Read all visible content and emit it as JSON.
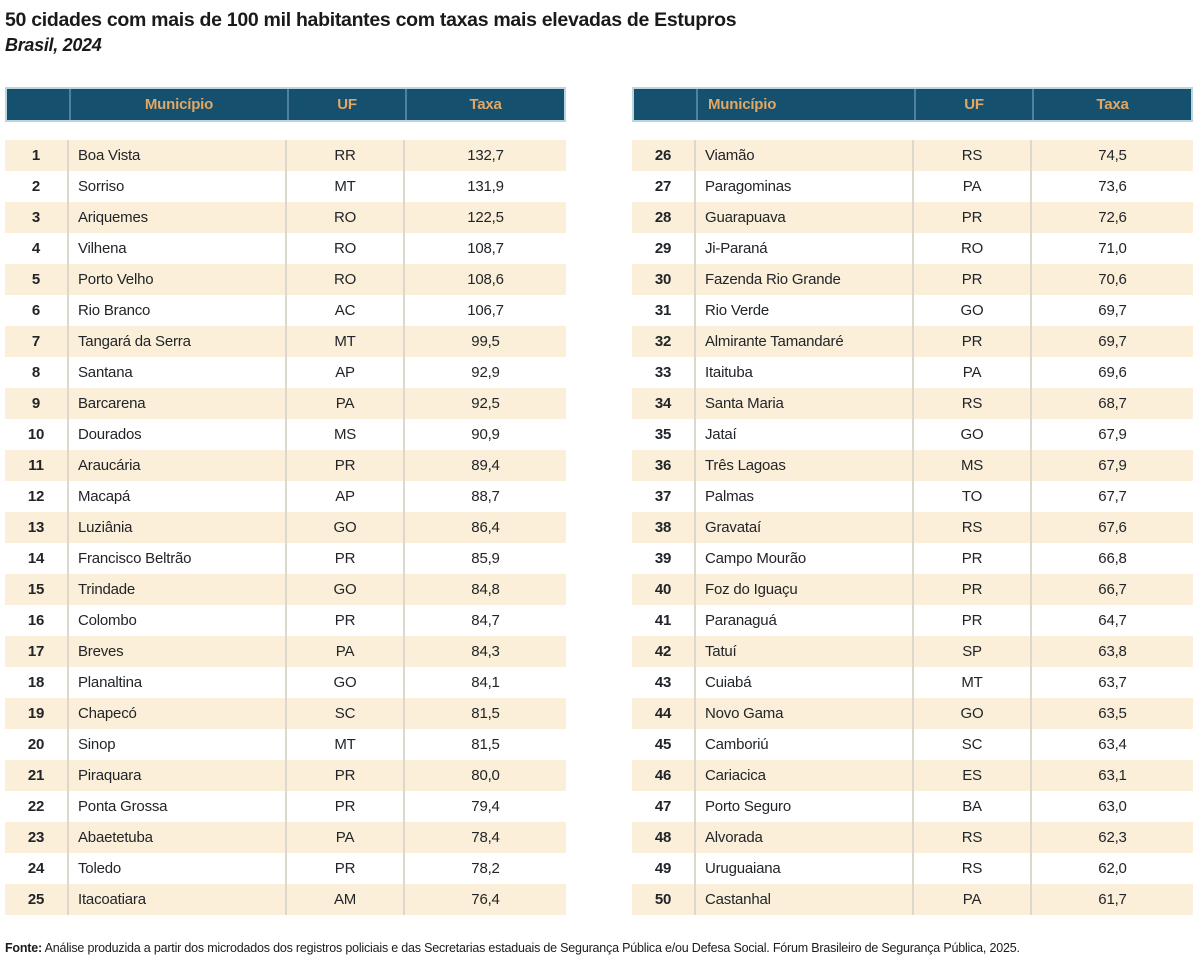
{
  "title": "50 cidades com mais de 100 mil habitantes com taxas mais elevadas de Estupros",
  "subtitle": "Brasil, 2024",
  "columns": {
    "rank": "",
    "municipio": "Município",
    "uf": "UF",
    "taxa": "Taxa"
  },
  "source": {
    "label": "Fonte:",
    "text": " Análise produzida a partir dos microdados dos registros policiais e das Secretarias estaduais de Segurança Pública e/ou Defesa Social. Fórum Brasileiro de Segurança Pública, 2025."
  },
  "colors": {
    "header_bg": "#15506e",
    "header_text": "#e0a765",
    "header_border": "#bcd4e0",
    "header_divider": "#4e81a0",
    "row_alt_bg": "#fcefd9",
    "row_divider": "#dcd8cb",
    "text_color": "#212529"
  },
  "tables": [
    {
      "id": "left",
      "rows": [
        {
          "rank": "1",
          "municipio": "Boa Vista",
          "uf": "RR",
          "taxa": "132,7"
        },
        {
          "rank": "2",
          "municipio": "Sorriso",
          "uf": "MT",
          "taxa": "131,9"
        },
        {
          "rank": "3",
          "municipio": "Ariquemes",
          "uf": "RO",
          "taxa": "122,5"
        },
        {
          "rank": "4",
          "municipio": "Vilhena",
          "uf": "RO",
          "taxa": "108,7"
        },
        {
          "rank": "5",
          "municipio": "Porto Velho",
          "uf": "RO",
          "taxa": "108,6"
        },
        {
          "rank": "6",
          "municipio": "Rio Branco",
          "uf": "AC",
          "taxa": "106,7"
        },
        {
          "rank": "7",
          "municipio": "Tangará da Serra",
          "uf": "MT",
          "taxa": "99,5"
        },
        {
          "rank": "8",
          "municipio": "Santana",
          "uf": "AP",
          "taxa": "92,9"
        },
        {
          "rank": "9",
          "municipio": "Barcarena",
          "uf": "PA",
          "taxa": "92,5"
        },
        {
          "rank": "10",
          "municipio": "Dourados",
          "uf": "MS",
          "taxa": "90,9"
        },
        {
          "rank": "11",
          "municipio": "Araucária",
          "uf": "PR",
          "taxa": "89,4"
        },
        {
          "rank": "12",
          "municipio": "Macapá",
          "uf": "AP",
          "taxa": "88,7"
        },
        {
          "rank": "13",
          "municipio": "Luziânia",
          "uf": "GO",
          "taxa": "86,4"
        },
        {
          "rank": "14",
          "municipio": "Francisco Beltrão",
          "uf": "PR",
          "taxa": "85,9"
        },
        {
          "rank": "15",
          "municipio": "Trindade",
          "uf": "GO",
          "taxa": "84,8"
        },
        {
          "rank": "16",
          "municipio": "Colombo",
          "uf": "PR",
          "taxa": "84,7"
        },
        {
          "rank": "17",
          "municipio": "Breves",
          "uf": "PA",
          "taxa": "84,3"
        },
        {
          "rank": "18",
          "municipio": "Planaltina",
          "uf": "GO",
          "taxa": "84,1"
        },
        {
          "rank": "19",
          "municipio": "Chapecó",
          "uf": "SC",
          "taxa": "81,5"
        },
        {
          "rank": "20",
          "municipio": "Sinop",
          "uf": "MT",
          "taxa": "81,5"
        },
        {
          "rank": "21",
          "municipio": "Piraquara",
          "uf": "PR",
          "taxa": "80,0"
        },
        {
          "rank": "22",
          "municipio": "Ponta Grossa",
          "uf": "PR",
          "taxa": "79,4"
        },
        {
          "rank": "23",
          "municipio": "Abaetetuba",
          "uf": "PA",
          "taxa": "78,4"
        },
        {
          "rank": "24",
          "municipio": "Toledo",
          "uf": "PR",
          "taxa": "78,2"
        },
        {
          "rank": "25",
          "municipio": "Itacoatiara",
          "uf": "AM",
          "taxa": "76,4"
        }
      ]
    },
    {
      "id": "right",
      "rows": [
        {
          "rank": "26",
          "municipio": "Viamão",
          "uf": "RS",
          "taxa": "74,5"
        },
        {
          "rank": "27",
          "municipio": "Paragominas",
          "uf": "PA",
          "taxa": "73,6"
        },
        {
          "rank": "28",
          "municipio": "Guarapuava",
          "uf": "PR",
          "taxa": "72,6"
        },
        {
          "rank": "29",
          "municipio": "Ji-Paraná",
          "uf": "RO",
          "taxa": "71,0"
        },
        {
          "rank": "30",
          "municipio": "Fazenda Rio Grande",
          "uf": "PR",
          "taxa": "70,6"
        },
        {
          "rank": "31",
          "municipio": "Rio Verde",
          "uf": "GO",
          "taxa": "69,7"
        },
        {
          "rank": "32",
          "municipio": "Almirante Tamandaré",
          "uf": "PR",
          "taxa": "69,7"
        },
        {
          "rank": "33",
          "municipio": "Itaituba",
          "uf": "PA",
          "taxa": "69,6"
        },
        {
          "rank": "34",
          "municipio": "Santa Maria",
          "uf": "RS",
          "taxa": "68,7"
        },
        {
          "rank": "35",
          "municipio": "Jataí",
          "uf": "GO",
          "taxa": "67,9"
        },
        {
          "rank": "36",
          "municipio": "Três Lagoas",
          "uf": "MS",
          "taxa": "67,9"
        },
        {
          "rank": "37",
          "municipio": "Palmas",
          "uf": "TO",
          "taxa": "67,7"
        },
        {
          "rank": "38",
          "municipio": "Gravataí",
          "uf": "RS",
          "taxa": "67,6"
        },
        {
          "rank": "39",
          "municipio": "Campo Mourão",
          "uf": "PR",
          "taxa": "66,8"
        },
        {
          "rank": "40",
          "municipio": "Foz do Iguaçu",
          "uf": "PR",
          "taxa": "66,7"
        },
        {
          "rank": "41",
          "municipio": "Paranaguá",
          "uf": "PR",
          "taxa": "64,7"
        },
        {
          "rank": "42",
          "municipio": "Tatuí",
          "uf": "SP",
          "taxa": "63,8"
        },
        {
          "rank": "43",
          "municipio": "Cuiabá",
          "uf": "MT",
          "taxa": "63,7"
        },
        {
          "rank": "44",
          "municipio": "Novo Gama",
          "uf": "GO",
          "taxa": "63,5"
        },
        {
          "rank": "45",
          "municipio": "Camboriú",
          "uf": "SC",
          "taxa": "63,4"
        },
        {
          "rank": "46",
          "municipio": "Cariacica",
          "uf": "ES",
          "taxa": "63,1"
        },
        {
          "rank": "47",
          "municipio": "Porto Seguro",
          "uf": "BA",
          "taxa": "63,0"
        },
        {
          "rank": "48",
          "municipio": "Alvorada",
          "uf": "RS",
          "taxa": "62,3"
        },
        {
          "rank": "49",
          "municipio": "Uruguaiana",
          "uf": "RS",
          "taxa": "62,0"
        },
        {
          "rank": "50",
          "municipio": "Castanhal",
          "uf": "PA",
          "taxa": "61,7"
        }
      ]
    }
  ]
}
